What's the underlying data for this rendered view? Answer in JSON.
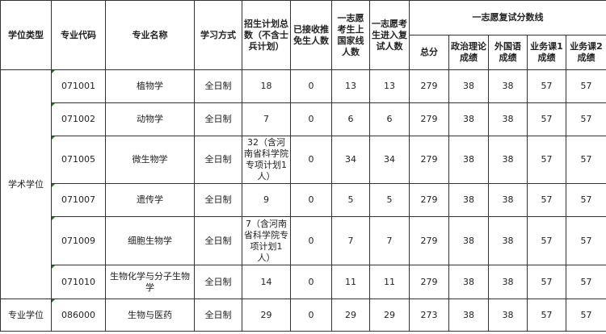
{
  "header": {
    "degree_type": "学位类型",
    "major_code": "专业代码",
    "major_name": "专业名称",
    "study_mode": "学习方式",
    "plan_total": "招生计划总数（不含士兵计划）",
    "exempt_accepted": "已接收推免生人数",
    "first_choice_national_line": "一志愿考生上国家线人数",
    "first_choice_retest": "一志愿考生进入复试人数",
    "retest_score_line": "一志愿复试分数线",
    "total_score": "总分",
    "politics": "政治理论成绩",
    "foreign_language": "外国语成绩",
    "course1": "业务课1成绩",
    "course2": "业务课2成绩"
  },
  "groups": [
    {
      "degree_type": "学术学位"
    },
    {
      "degree_type": "专业学位"
    }
  ],
  "rows": [
    {
      "code": "071001",
      "name": "植物学",
      "mode": "全日制",
      "plan": "18",
      "exempt": "0",
      "national": "13",
      "retest": "13",
      "total": "279",
      "politics": "38",
      "foreign": "38",
      "c1": "57",
      "c2": "57"
    },
    {
      "code": "071002",
      "name": "动物学",
      "mode": "全日制",
      "plan": "7",
      "exempt": "0",
      "national": "6",
      "retest": "6",
      "total": "279",
      "politics": "38",
      "foreign": "38",
      "c1": "57",
      "c2": "57"
    },
    {
      "code": "071005",
      "name": "微生物学",
      "mode": "全日制",
      "plan": "32（含河南省科学院专项计划1人）",
      "exempt": "0",
      "national": "34",
      "retest": "34",
      "total": "279",
      "politics": "38",
      "foreign": "38",
      "c1": "57",
      "c2": "57"
    },
    {
      "code": "071007",
      "name": "遗传学",
      "mode": "全日制",
      "plan": "9",
      "exempt": "0",
      "national": "5",
      "retest": "5",
      "total": "279",
      "politics": "38",
      "foreign": "38",
      "c1": "57",
      "c2": "57"
    },
    {
      "code": "071009",
      "name": "细胞生物学",
      "mode": "全日制",
      "plan": "7（含河南省科学院专项计划1人）",
      "exempt": "0",
      "national": "7",
      "retest": "7",
      "total": "279",
      "politics": "38",
      "foreign": "38",
      "c1": "57",
      "c2": "57"
    },
    {
      "code": "071010",
      "name": "生物化学与分子生物学",
      "mode": "全日制",
      "plan": "14",
      "exempt": "0",
      "national": "11",
      "retest": "11",
      "total": "279",
      "politics": "38",
      "foreign": "38",
      "c1": "57",
      "c2": "57"
    },
    {
      "code": "086000",
      "name": "生物与医药",
      "mode": "全日制",
      "plan": "29",
      "exempt": "0",
      "national": "29",
      "retest": "29",
      "total": "273",
      "politics": "38",
      "foreign": "38",
      "c1": "57",
      "c2": "57"
    }
  ]
}
